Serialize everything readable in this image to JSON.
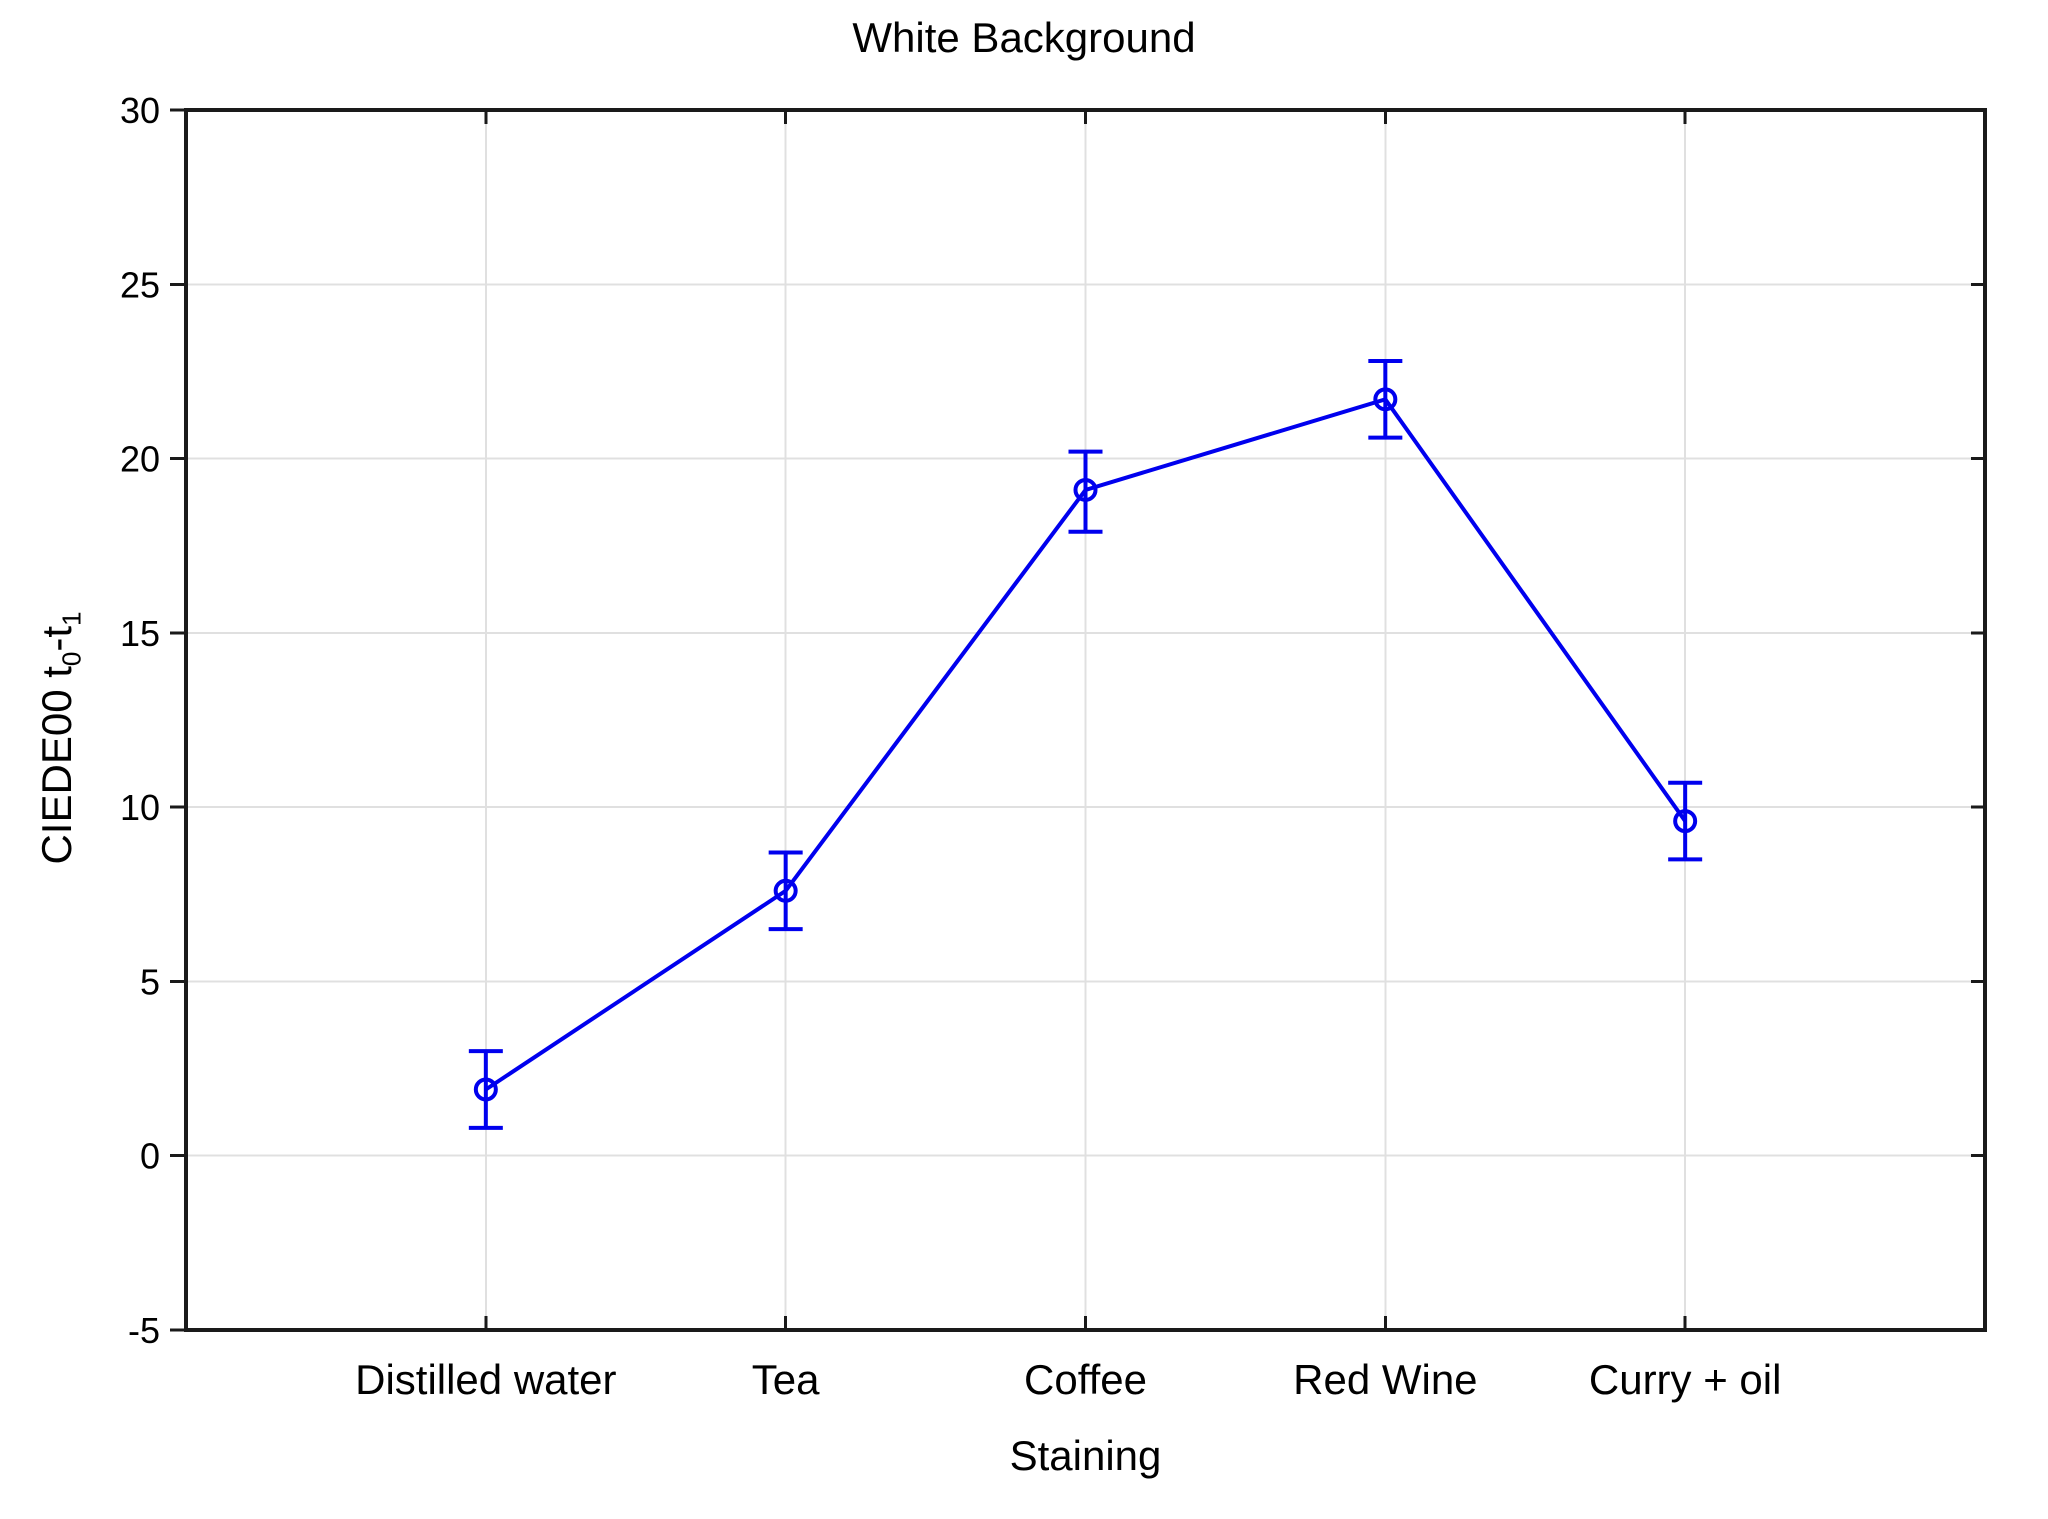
{
  "figure": {
    "title": "White Background",
    "xlabel": "Staining",
    "ylabel_prefix": "CIEDE00 t",
    "ylabel_sub0": "0",
    "ylabel_mid": "-t",
    "ylabel_sub1": "1"
  },
  "chart_data": {
    "type": "line",
    "title": "White Background",
    "xlabel": "Staining",
    "ylabel": "CIEDE00 t0-t1",
    "categories": [
      "Distilled water",
      "Tea",
      "Coffee",
      "Red Wine",
      "Curry + oil"
    ],
    "series": [
      {
        "values": [
          1.9,
          7.6,
          19.1,
          21.7,
          9.6
        ],
        "error_low": [
          0.8,
          6.5,
          17.9,
          20.6,
          8.5
        ],
        "error_high": [
          3.0,
          8.7,
          20.2,
          22.8,
          10.7
        ]
      }
    ],
    "ylim": [
      -5,
      30
    ],
    "yticks": [
      -5,
      0,
      5,
      10,
      15,
      20,
      25,
      30
    ],
    "grid": true,
    "legend": false,
    "marker": "open-circle",
    "colors": {
      "series": "#0000EE",
      "grid": "#E0E0E0",
      "frame": "#1A1A1A",
      "text": "#000000",
      "background": "#FFFFFF"
    }
  }
}
